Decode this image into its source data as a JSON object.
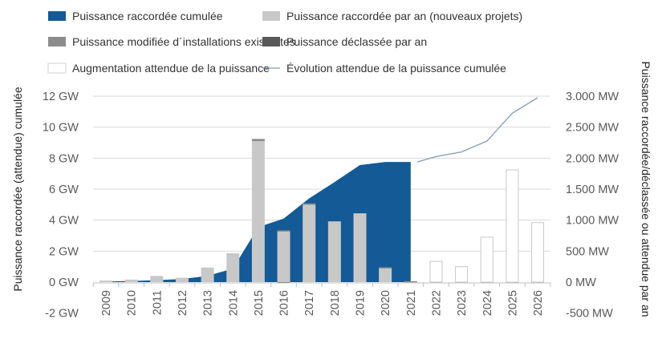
{
  "chart_data": {
    "type": "bar",
    "categories": [
      "2009",
      "2010",
      "2011",
      "2012",
      "2013",
      "2014",
      "2015",
      "2016",
      "2017",
      "2018",
      "2019",
      "2020",
      "2021",
      "2022",
      "2023",
      "2024",
      "2025",
      "2026"
    ],
    "ylabel": "Puissance raccordée (attendue) cumulée",
    "y2label": "Puissance raccordée/déclassée ou attendue par an",
    "ylim": [
      -2,
      12
    ],
    "y2lim": [
      -500,
      3000
    ],
    "yticks": [
      "-2 GW",
      "0 GW",
      "2 GW",
      "4 GW",
      "6 GW",
      "8 GW",
      "10 GW",
      "12 GW"
    ],
    "y2ticks": [
      "-500 MW",
      "0 MW",
      "500 MW",
      "1.000 MW",
      "1.500 MW",
      "2.000 MW",
      "2.500 MW",
      "3.000 MW"
    ],
    "grid": true,
    "legend_placement": "top",
    "series": [
      {
        "name": "Puissance raccordée cumulée",
        "kind": "area",
        "axis": "left",
        "unit": "GW",
        "values": [
          0.03,
          0.07,
          0.12,
          0.2,
          0.4,
          0.87,
          3.55,
          4.1,
          5.4,
          6.45,
          7.55,
          7.75,
          7.75,
          null,
          null,
          null,
          null,
          null
        ]
      },
      {
        "name": "Puissance raccordée par an (nouveaux projets)",
        "kind": "bar",
        "axis": "right",
        "unit": "MW",
        "values": [
          25,
          40,
          100,
          70,
          235,
          465,
          2275,
          820,
          1250,
          980,
          1110,
          220,
          5,
          null,
          null,
          null,
          null,
          null
        ]
      },
      {
        "name": "Puissance modifiée d´installations existantes",
        "kind": "bar",
        "axis": "right",
        "unit": "MW",
        "values": [
          0,
          0,
          0,
          0,
          0,
          0,
          35,
          15,
          20,
          0,
          0,
          20,
          10,
          null,
          null,
          null,
          null,
          null
        ]
      },
      {
        "name": "Puissance déclassée par an",
        "kind": "bar",
        "axis": "right",
        "unit": "MW",
        "values": [
          0,
          0,
          0,
          0,
          0,
          0,
          0,
          -10,
          0,
          0,
          0,
          0,
          0,
          null,
          null,
          null,
          null,
          null
        ]
      },
      {
        "name": "Augmentation attendue de la puissance",
        "kind": "bar",
        "axis": "right",
        "unit": "MW",
        "values": [
          null,
          null,
          null,
          null,
          null,
          null,
          null,
          null,
          null,
          null,
          null,
          null,
          null,
          335,
          250,
          725,
          1810,
          960
        ]
      },
      {
        "name": "Évolution attendue de la puissance cumulée",
        "kind": "line",
        "axis": "left",
        "unit": "GW",
        "values": [
          null,
          null,
          null,
          null,
          null,
          null,
          null,
          null,
          null,
          null,
          null,
          null,
          7.75,
          8.1,
          8.4,
          9.1,
          10.9,
          11.9
        ]
      }
    ],
    "colors": {
      "cumulative": "#135a96",
      "new": "#c8c8c8",
      "modified": "#8c8c8c",
      "declassed": "#595959",
      "expected_bar": "#ffffff",
      "expected_line": "#7f9cb8",
      "grid": "#d9d9d9"
    }
  }
}
